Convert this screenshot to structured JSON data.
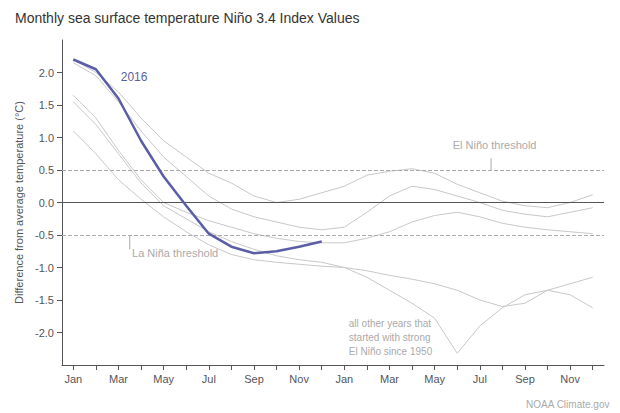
{
  "chart_data": {
    "type": "line",
    "title": "Monthly sea surface temperature Niño 3.4 Index Values",
    "ylabel": "Difference from average temperature (°C)",
    "categories": [
      "Jan",
      null,
      "Mar",
      null,
      "May",
      null,
      "Jul",
      null,
      "Sep",
      null,
      "Nov",
      null,
      "Jan",
      null,
      "Mar",
      null,
      "May",
      null,
      "Jul",
      null,
      "Sep",
      null,
      "Nov",
      null
    ],
    "series": [
      {
        "color": "#c8c8cc",
        "values": [
          2.2,
          2.0,
          1.7,
          1.3,
          0.95,
          0.7,
          0.45,
          0.3,
          0.1,
          0.0,
          0.05,
          0.15,
          0.25,
          0.42,
          0.48,
          0.52,
          0.45,
          0.28,
          0.15,
          0.02,
          -0.05,
          -0.08,
          0.0,
          0.12
        ]
      },
      {
        "color": "#c8c8cc",
        "values": [
          2.15,
          1.95,
          1.55,
          1.1,
          0.7,
          0.4,
          0.1,
          -0.1,
          -0.22,
          -0.3,
          -0.38,
          -0.42,
          -0.38,
          -0.15,
          0.1,
          0.25,
          0.2,
          0.1,
          0.0,
          -0.12,
          -0.18,
          -0.22,
          -0.15,
          -0.08
        ]
      },
      {
        "color": "#c8c8cc",
        "values": [
          1.65,
          1.3,
          0.8,
          0.35,
          0.0,
          -0.15,
          -0.28,
          -0.38,
          -0.48,
          -0.55,
          -0.6,
          -0.62,
          -0.62,
          -0.55,
          -0.45,
          -0.3,
          -0.2,
          -0.15,
          -0.22,
          -0.32,
          -0.38,
          -0.42,
          -0.45,
          -0.48
        ]
      },
      {
        "color": "#c8c8cc",
        "values": [
          1.1,
          0.75,
          0.35,
          0.05,
          -0.22,
          -0.45,
          -0.65,
          -0.8,
          -0.88,
          -0.92,
          -0.95,
          -0.98,
          -1.0,
          -1.05,
          -1.12,
          -1.18,
          -1.25,
          -1.35,
          -1.5,
          -1.6,
          -1.55,
          -1.35,
          -1.25,
          -1.15
        ]
      },
      {
        "color": "#c8c8cc",
        "values": [
          1.55,
          1.2,
          0.75,
          0.3,
          -0.05,
          -0.25,
          -0.45,
          -0.6,
          -0.72,
          -0.82,
          -0.88,
          -0.92,
          -1.0,
          -1.15,
          -1.35,
          -1.55,
          -1.78,
          -2.32,
          -1.9,
          -1.62,
          -1.42,
          -1.35,
          -1.42,
          -1.62
        ]
      },
      {
        "color": "#5b5ea6",
        "values": [
          2.2,
          2.05,
          1.6,
          0.95,
          0.4,
          -0.05,
          -0.48,
          -0.68,
          -0.78,
          -0.75,
          -0.68,
          -0.6,
          null,
          null,
          null,
          null,
          null,
          null,
          null,
          null,
          null,
          null,
          null,
          null
        ]
      }
    ],
    "ylim": [
      -2.5,
      2.5
    ],
    "yticks": [
      {
        "value": -2.0,
        "label": "-2.0"
      },
      -1.5,
      {
        "value": -1.0,
        "label": "-1.0"
      },
      -0.5,
      {
        "value": 0.0,
        "label": "0.0"
      },
      0.5,
      {
        "value": 1.0,
        "label": "1.0"
      },
      1.5,
      {
        "value": 2.0,
        "label": "2.0"
      }
    ],
    "grid": false,
    "reference_lines": [
      {
        "value": 0,
        "color": "#555555",
        "line_style": "solid"
      },
      {
        "value": 0.5,
        "color": "#aaaaaa",
        "line_style": "dashed"
      },
      {
        "value": -0.5,
        "color": "#aaaaaa",
        "line_style": "dashed"
      }
    ],
    "annotations": [
      {
        "text": "2016",
        "color": "#5b5ea6"
      },
      {
        "text": "La Niña threshold",
        "color": "#aaaaaa"
      },
      {
        "text": "El Niño threshold",
        "color": "#aaaaaa"
      },
      {
        "text": "all other years that\nstarted with strong\nEl Niño since 1950",
        "color": "#aaaaaa"
      },
      {
        "text": "NOAA Climate.gov",
        "color": "#aaaaaa"
      }
    ]
  }
}
